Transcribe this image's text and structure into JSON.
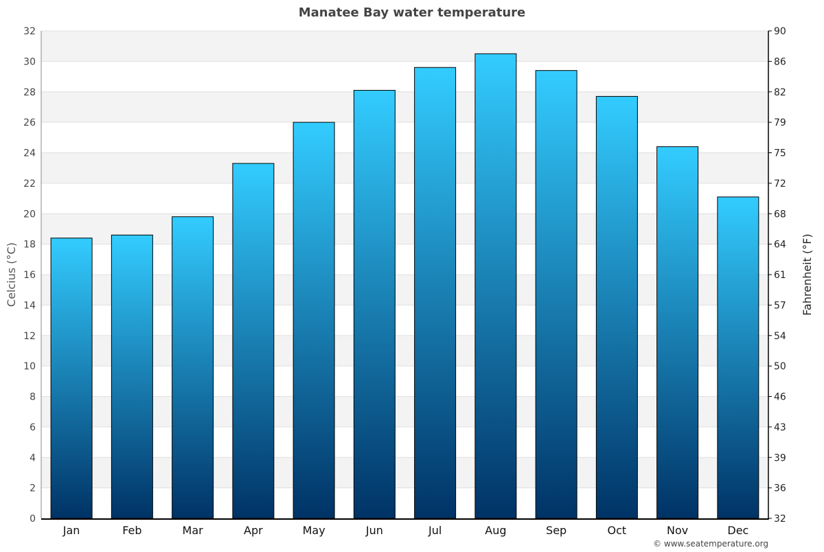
{
  "chart_data": {
    "type": "bar",
    "title": "Manatee Bay water temperature",
    "ylabel": "Celcius (°C)",
    "ylabel_right": "Fahrenheit (°F)",
    "categories": [
      "Jan",
      "Feb",
      "Mar",
      "Apr",
      "May",
      "Jun",
      "Jul",
      "Aug",
      "Sep",
      "Oct",
      "Nov",
      "Dec"
    ],
    "values": [
      18.4,
      18.6,
      19.8,
      23.3,
      26.0,
      28.1,
      29.6,
      30.5,
      29.4,
      27.7,
      24.4,
      21.1
    ],
    "ylim": [
      0,
      32
    ],
    "yticks": [
      0,
      2,
      4,
      6,
      8,
      10,
      12,
      14,
      16,
      18,
      20,
      22,
      24,
      26,
      28,
      30,
      32
    ],
    "yticks_right": [
      32,
      36,
      39,
      43,
      46,
      50,
      54,
      57,
      61,
      64,
      68,
      72,
      75,
      79,
      82,
      86,
      90
    ],
    "grid": true,
    "colors": {
      "bar_top": "#33ccff",
      "bar_bottom": "#003366",
      "band": "#f3f3f3"
    }
  },
  "footer": {
    "credit": "© www.seatemperature.org"
  }
}
